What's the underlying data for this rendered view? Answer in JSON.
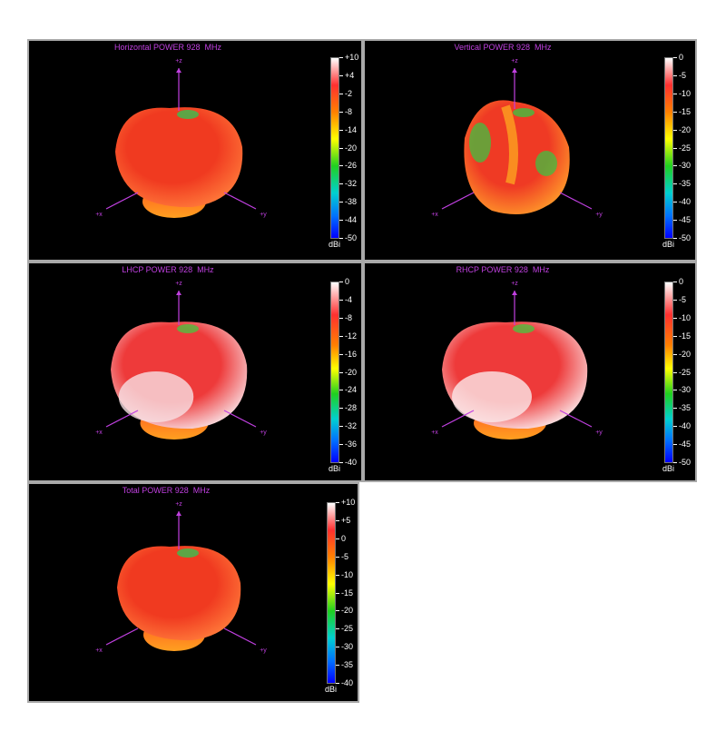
{
  "panels": [
    {
      "id": "horizontal",
      "title": "Horizontal POWER 928  MHz",
      "axes": {
        "z": "+z",
        "x": "+x",
        "y": "+y"
      },
      "colorbar": {
        "unit": "dBi",
        "ticks": [
          "+10",
          "+4",
          "-2",
          "-8",
          "-14",
          "-20",
          "-26",
          "-32",
          "-38",
          "-44",
          "-50"
        ]
      },
      "colors": {
        "body": "#f03a20",
        "highlight": "#ff7a3a",
        "accent": "#38c050"
      }
    },
    {
      "id": "vertical",
      "title": "Vertical POWER 928  MHz",
      "axes": {
        "z": "+z",
        "x": "+x",
        "y": "+y"
      },
      "colorbar": {
        "unit": "dBi",
        "ticks": [
          "0",
          "-5",
          "-10",
          "-15",
          "-20",
          "-25",
          "-30",
          "-35",
          "-40",
          "-45",
          "-50"
        ]
      },
      "colors": {
        "body": "#ef3a24",
        "highlight": "#ff9a2a",
        "accent": "#40c040"
      }
    },
    {
      "id": "lhcp",
      "title": "LHCP POWER 928  MHz",
      "axes": {
        "z": "+z",
        "x": "+x",
        "y": "+y"
      },
      "colorbar": {
        "unit": "dBi",
        "ticks": [
          "0",
          "-4",
          "-8",
          "-12",
          "-16",
          "-20",
          "-24",
          "-28",
          "-32",
          "-36",
          "-40"
        ]
      },
      "colors": {
        "body": "#ee3a3a",
        "highlight": "#f8e0e4",
        "accent": "#50c040"
      }
    },
    {
      "id": "rhcp",
      "title": "RHCP POWER 928  MHz",
      "axes": {
        "z": "+z",
        "x": "+x",
        "y": "+y"
      },
      "colorbar": {
        "unit": "dBi",
        "ticks": [
          "0",
          "-5",
          "-10",
          "-15",
          "-20",
          "-25",
          "-30",
          "-35",
          "-40",
          "-45",
          "-50"
        ]
      },
      "colors": {
        "body": "#ee3a3a",
        "highlight": "#fbe8ea",
        "accent": "#50c040"
      }
    },
    {
      "id": "total",
      "title": "Total POWER 928  MHz",
      "axes": {
        "z": "+z",
        "x": "+x",
        "y": "+y"
      },
      "colorbar": {
        "unit": "dBi",
        "ticks": [
          "+10",
          "+5",
          "0",
          "-5",
          "-10",
          "-15",
          "-20",
          "-25",
          "-30",
          "-35",
          "-40"
        ]
      },
      "colors": {
        "body": "#f03a20",
        "highlight": "#ff7a3a",
        "accent": "#38c050"
      }
    }
  ]
}
